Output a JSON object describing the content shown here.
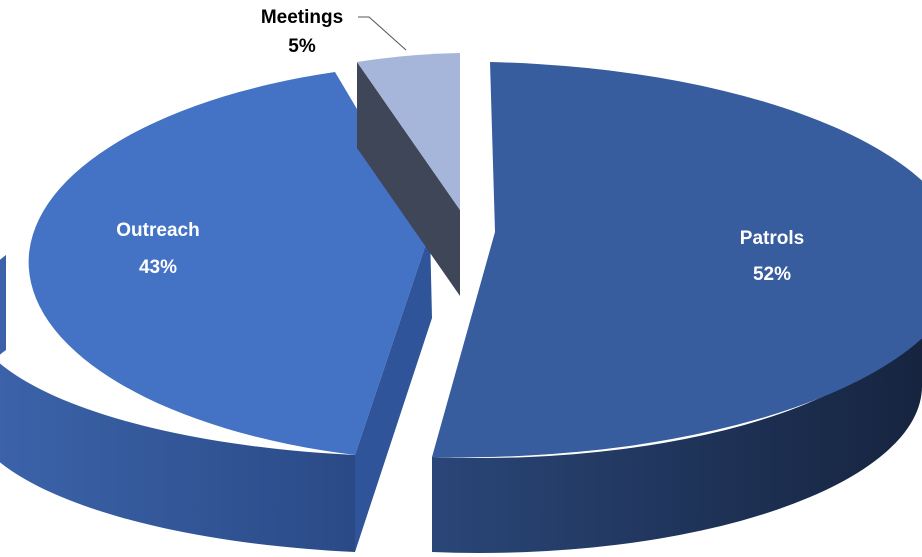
{
  "chart_data": {
    "type": "pie",
    "style": "3d-exploded",
    "slices": [
      {
        "label": "Patrols",
        "value": 52,
        "display": "52%",
        "color": "#385D9E",
        "label_color": "#FFFFFF"
      },
      {
        "label": "Meetings",
        "value": 5,
        "display": "5%",
        "color": "#A6B5DA",
        "label_color": "#000000"
      },
      {
        "label": "Outreach",
        "value": 43,
        "display": "43%",
        "color": "#4472C4",
        "label_color": "#FFFFFF"
      }
    ]
  }
}
